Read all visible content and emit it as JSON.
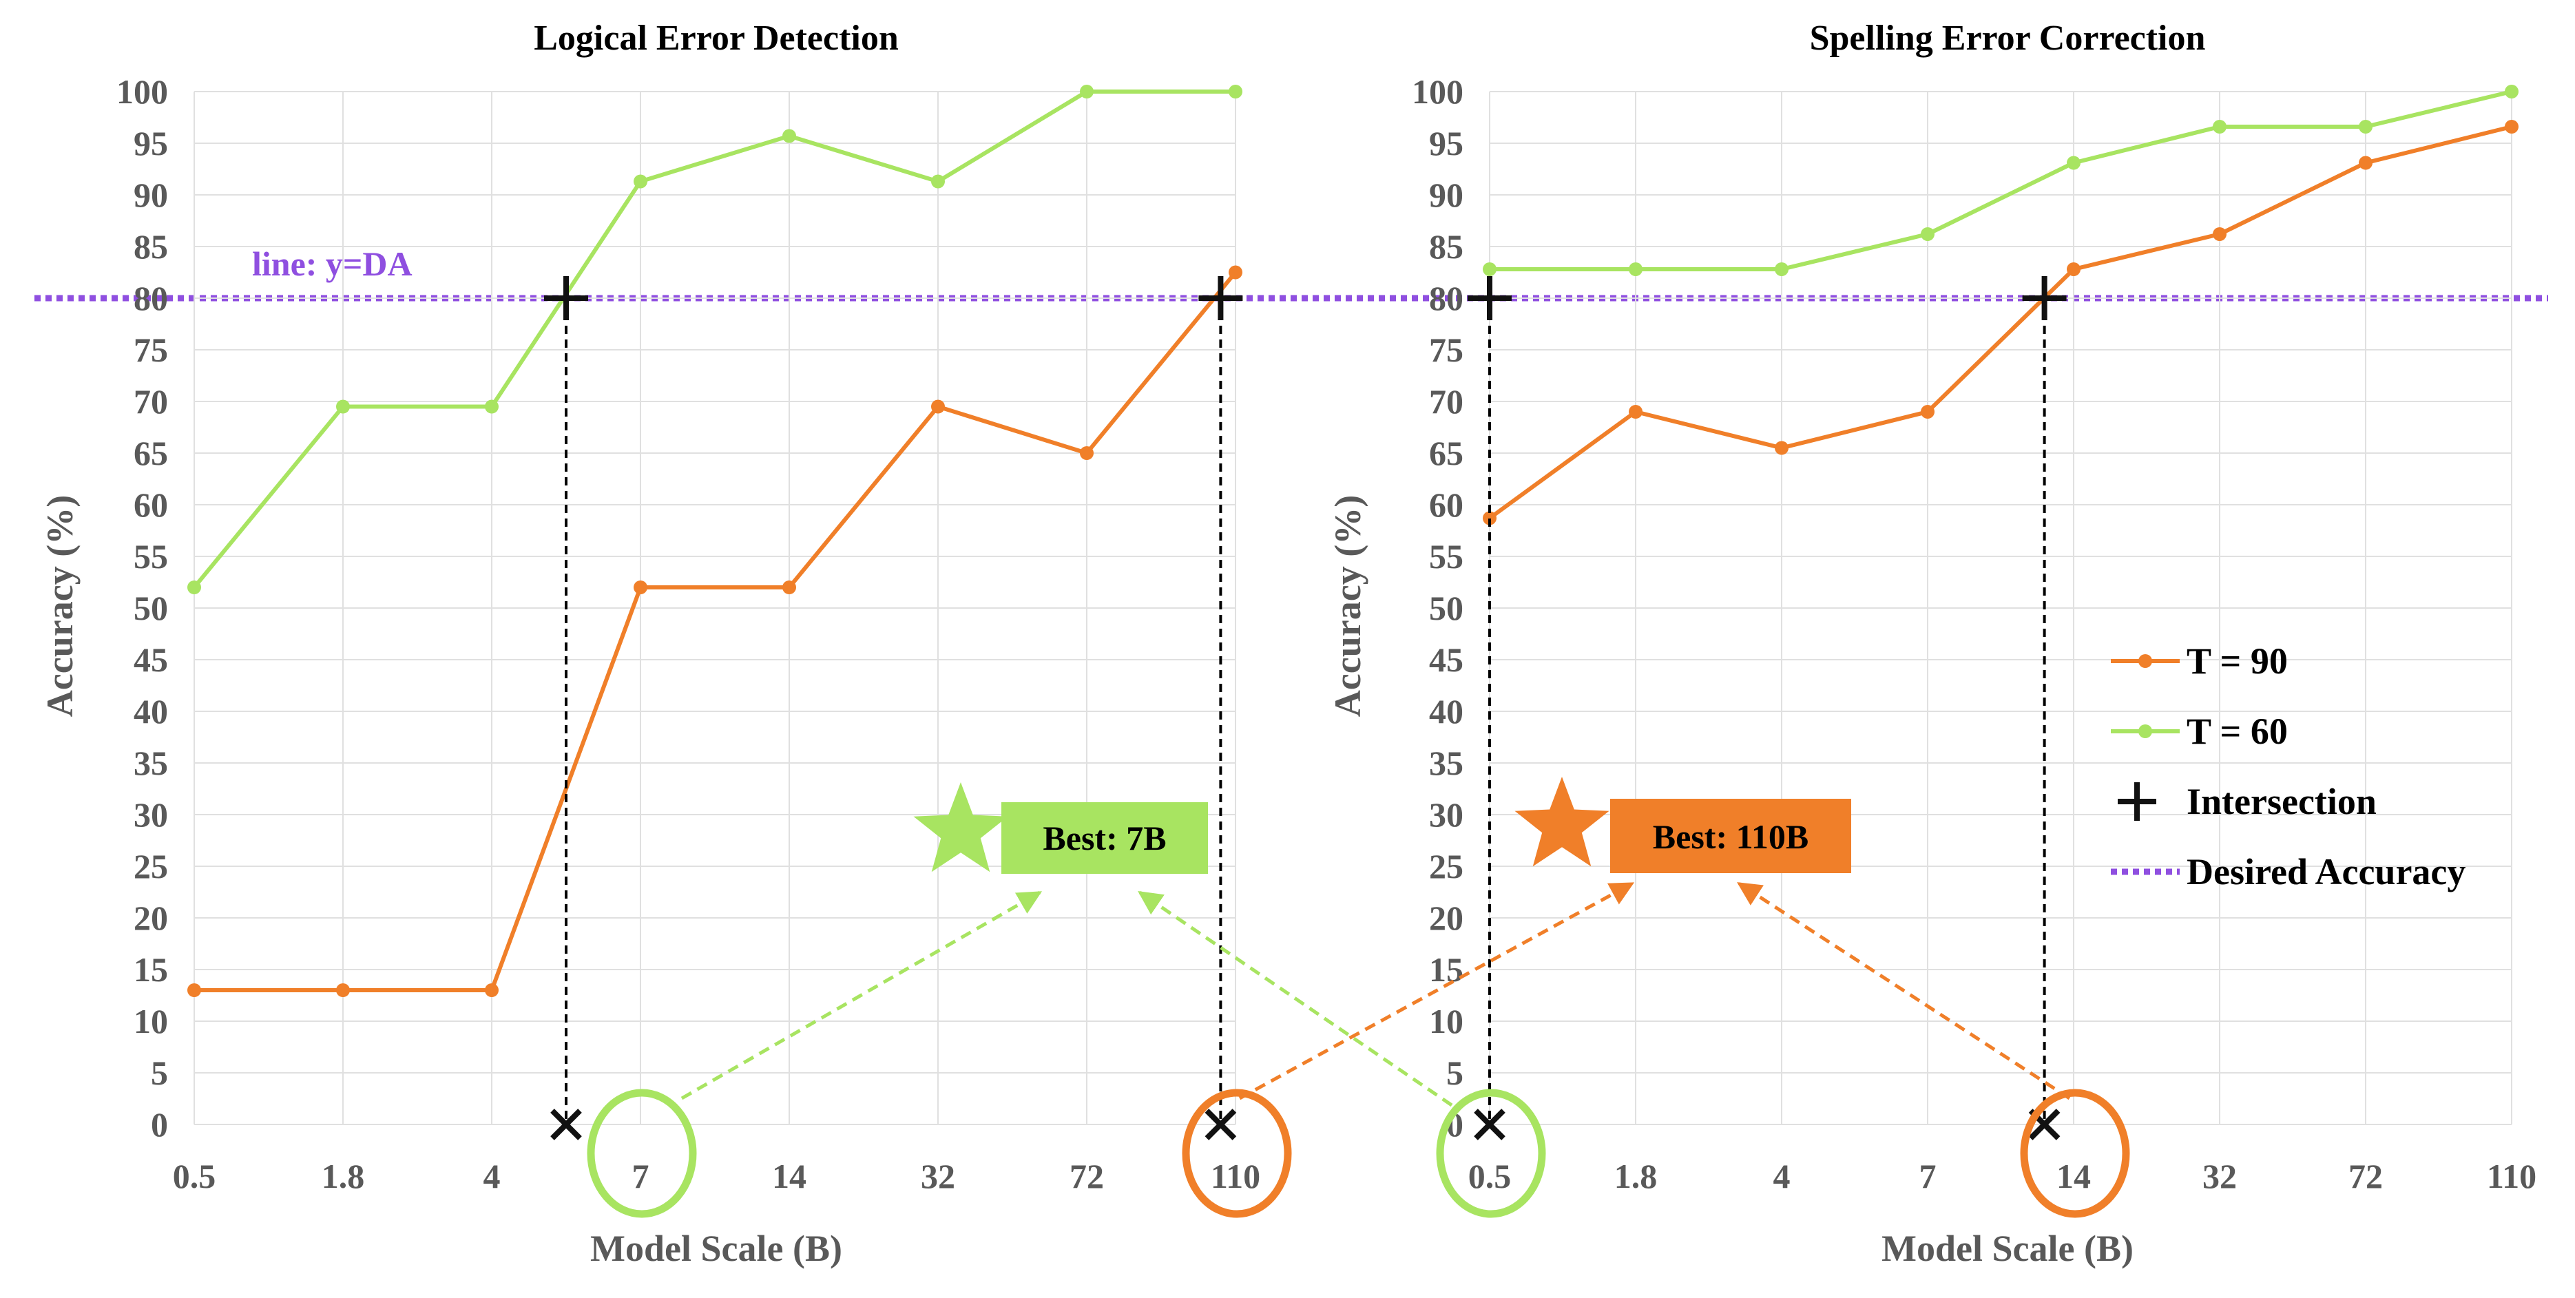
{
  "legend": {
    "items": [
      {
        "label": "T = 90",
        "kind": "line-marker",
        "color": "#f07f29"
      },
      {
        "label": "T = 60",
        "kind": "line-marker",
        "color": "#a8e461"
      },
      {
        "label": "Intersection",
        "kind": "plus-marker",
        "color": "#111111"
      },
      {
        "label": "Desired Accuracy",
        "kind": "dotted-line",
        "color": "#8f4fe0"
      }
    ]
  },
  "colors": {
    "t90": "#f07f29",
    "t60": "#a8e461",
    "desired": "#8f4fe0",
    "marker": "#111111",
    "axis_text": "#595959",
    "grid": "#e0e0e0"
  },
  "desired_accuracy": 80,
  "chart_data": [
    {
      "type": "line",
      "title": "Logical Error Detection",
      "xlabel": "Model Scale (B)",
      "ylabel": "Accuracy (%)",
      "categories": [
        "0.5",
        "1.8",
        "4",
        "7",
        "14",
        "32",
        "72",
        "110"
      ],
      "ylim": [
        0,
        100
      ],
      "yticks": [
        0,
        5,
        10,
        15,
        20,
        25,
        30,
        35,
        40,
        45,
        50,
        55,
        60,
        65,
        70,
        75,
        80,
        85,
        90,
        95,
        100
      ],
      "grid": true,
      "series": [
        {
          "name": "T = 90",
          "values": [
            13,
            13,
            13,
            52,
            52,
            69.5,
            65,
            82.5
          ]
        },
        {
          "name": "T = 60",
          "values": [
            52,
            69.5,
            69.5,
            91.3,
            95.7,
            91.3,
            100,
            100
          ]
        }
      ],
      "hline": {
        "y": 80,
        "label": "line: y=DA"
      },
      "intersections": [
        {
          "series": "T = 60",
          "x_index": 2.5,
          "y": 80
        },
        {
          "series": "T = 90",
          "x_index": 6.9,
          "y": 80
        }
      ],
      "x_marks": [
        {
          "x_index": 2.5
        },
        {
          "x_index": 6.9
        }
      ],
      "circled_ticks": [
        {
          "category": "7",
          "color": "t60"
        },
        {
          "category": "110",
          "color": "t90"
        }
      ],
      "annotations": [
        {
          "text": "Best: 7B",
          "color": "t60"
        }
      ]
    },
    {
      "type": "line",
      "title": "Spelling Error Correction",
      "xlabel": "Model Scale (B)",
      "ylabel": "Accuracy (%)",
      "categories": [
        "0.5",
        "1.8",
        "4",
        "7",
        "14",
        "32",
        "72",
        "110"
      ],
      "ylim": [
        0,
        100
      ],
      "yticks": [
        0,
        5,
        10,
        15,
        20,
        25,
        30,
        35,
        40,
        45,
        50,
        55,
        60,
        65,
        70,
        75,
        80,
        85,
        90,
        95,
        100
      ],
      "grid": true,
      "legend_position": "right",
      "series": [
        {
          "name": "T = 90",
          "values": [
            58.7,
            69,
            65.5,
            69,
            82.8,
            86.2,
            93.1,
            96.6
          ]
        },
        {
          "name": "T = 60",
          "values": [
            82.8,
            82.8,
            82.8,
            86.2,
            93.1,
            96.6,
            96.6,
            100
          ]
        }
      ],
      "hline": {
        "y": 80
      },
      "intersections": [
        {
          "series": "T = 60",
          "x_index": 0,
          "y": 80
        },
        {
          "series": "T = 90",
          "x_index": 3.8,
          "y": 80
        }
      ],
      "x_marks": [
        {
          "x_index": 0
        },
        {
          "x_index": 3.8
        }
      ],
      "circled_ticks": [
        {
          "category": "0.5",
          "color": "t60"
        },
        {
          "category": "14",
          "color": "t90"
        }
      ],
      "annotations": [
        {
          "text": "Best: 110B",
          "color": "t90"
        }
      ]
    }
  ]
}
